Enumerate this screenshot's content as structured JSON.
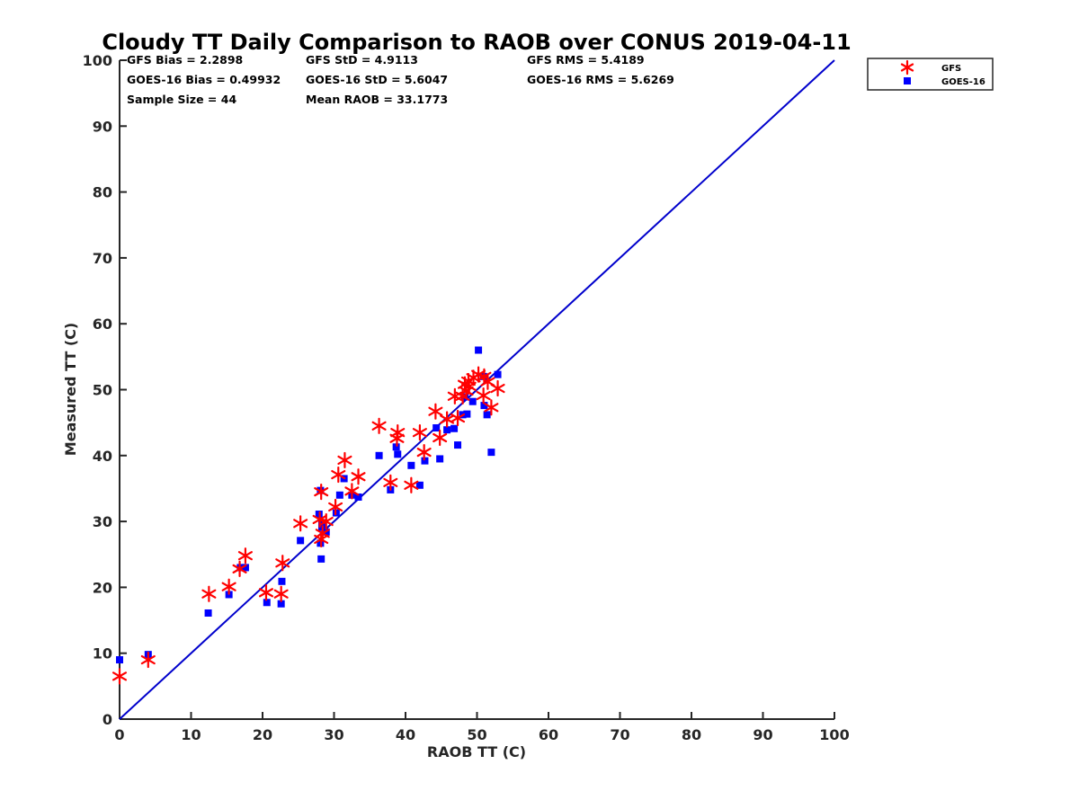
{
  "chart_data": {
    "type": "scatter",
    "title": "Cloudy TT Daily Comparison to RAOB over CONUS 2019-04-11",
    "xlabel": "RAOB TT (C)",
    "ylabel": "Measured TT (C)",
    "xlim": [
      0,
      100
    ],
    "ylim": [
      0,
      100
    ],
    "xticks": [
      "0",
      "10",
      "20",
      "30",
      "40",
      "50",
      "60",
      "70",
      "80",
      "90",
      "100"
    ],
    "yticks": [
      "0",
      "10",
      "20",
      "30",
      "40",
      "50",
      "60",
      "70",
      "80",
      "90",
      "100"
    ],
    "grid": false,
    "legend_position": "outside-top-right",
    "reference_line": {
      "from": [
        0,
        0
      ],
      "to": [
        100,
        100
      ],
      "color": "#0000cc"
    },
    "stats": [
      "GFS Bias = 2.2898",
      "GFS StD = 4.9113",
      "GFS RMS = 5.4189",
      "GOES-16 Bias = 0.49932",
      "GOES-16 StD = 5.6047",
      "GOES-16 RMS = 5.6269",
      "Sample Size = 44",
      "Mean RAOB = 33.1773"
    ],
    "series": [
      {
        "name": "GFS",
        "marker": "asterisk",
        "color": "#ff0000",
        "points": [
          [
            0.0,
            6.5
          ],
          [
            4.0,
            9.0
          ],
          [
            12.5,
            19.0
          ],
          [
            15.3,
            20.1
          ],
          [
            16.8,
            22.8
          ],
          [
            17.6,
            24.8
          ],
          [
            20.5,
            19.2
          ],
          [
            22.6,
            19.0
          ],
          [
            22.8,
            23.7
          ],
          [
            25.3,
            29.7
          ],
          [
            28.0,
            30.3
          ],
          [
            28.2,
            27.3
          ],
          [
            28.2,
            34.5
          ],
          [
            28.4,
            28.2
          ],
          [
            28.9,
            30.0
          ],
          [
            30.2,
            32.2
          ],
          [
            30.6,
            37.1
          ],
          [
            31.5,
            39.3
          ],
          [
            32.5,
            34.6
          ],
          [
            33.4,
            36.8
          ],
          [
            36.3,
            44.5
          ],
          [
            37.9,
            35.9
          ],
          [
            38.8,
            42.6
          ],
          [
            38.9,
            43.5
          ],
          [
            40.8,
            35.5
          ],
          [
            42.0,
            43.5
          ],
          [
            42.6,
            40.5
          ],
          [
            44.2,
            46.7
          ],
          [
            44.8,
            42.7
          ],
          [
            45.8,
            45.5
          ],
          [
            46.9,
            49.0
          ],
          [
            47.3,
            45.7
          ],
          [
            48.0,
            49.0
          ],
          [
            48.3,
            50.8
          ],
          [
            48.8,
            51.3
          ],
          [
            48.5,
            49.8
          ],
          [
            49.5,
            51.8
          ],
          [
            50.2,
            52.3
          ],
          [
            51.0,
            52.0
          ],
          [
            50.9,
            49.1
          ],
          [
            51.5,
            51.2
          ],
          [
            52.0,
            47.3
          ],
          [
            52.9,
            50.2
          ],
          [
            48.9,
            50.5
          ]
        ]
      },
      {
        "name": "GOES-16",
        "marker": "square",
        "color": "#0000ff",
        "points": [
          [
            0.0,
            9.0
          ],
          [
            4.0,
            9.8
          ],
          [
            12.4,
            16.1
          ],
          [
            15.3,
            18.9
          ],
          [
            16.9,
            23.0
          ],
          [
            17.6,
            23.0
          ],
          [
            20.6,
            17.7
          ],
          [
            22.6,
            17.5
          ],
          [
            22.7,
            20.9
          ],
          [
            25.3,
            27.1
          ],
          [
            27.9,
            31.1
          ],
          [
            28.1,
            26.7
          ],
          [
            28.2,
            24.3
          ],
          [
            28.3,
            29.1
          ],
          [
            28.3,
            29.8
          ],
          [
            28.9,
            28.4
          ],
          [
            28.1,
            34.7
          ],
          [
            30.3,
            31.3
          ],
          [
            30.8,
            34.0
          ],
          [
            31.4,
            36.5
          ],
          [
            32.5,
            34.0
          ],
          [
            33.4,
            33.7
          ],
          [
            36.3,
            40.0
          ],
          [
            37.9,
            34.8
          ],
          [
            38.7,
            41.3
          ],
          [
            38.9,
            40.2
          ],
          [
            40.8,
            38.5
          ],
          [
            42.0,
            35.5
          ],
          [
            42.7,
            39.2
          ],
          [
            44.3,
            44.2
          ],
          [
            44.8,
            39.5
          ],
          [
            45.8,
            43.9
          ],
          [
            46.8,
            44.1
          ],
          [
            47.3,
            41.6
          ],
          [
            48.0,
            46.2
          ],
          [
            48.3,
            48.9
          ],
          [
            48.6,
            46.3
          ],
          [
            49.4,
            48.2
          ],
          [
            50.2,
            56.0
          ],
          [
            51.0,
            47.6
          ],
          [
            51.4,
            46.2
          ],
          [
            52.0,
            40.5
          ],
          [
            52.9,
            52.3
          ],
          [
            50.9,
            52.0
          ]
        ]
      }
    ]
  }
}
